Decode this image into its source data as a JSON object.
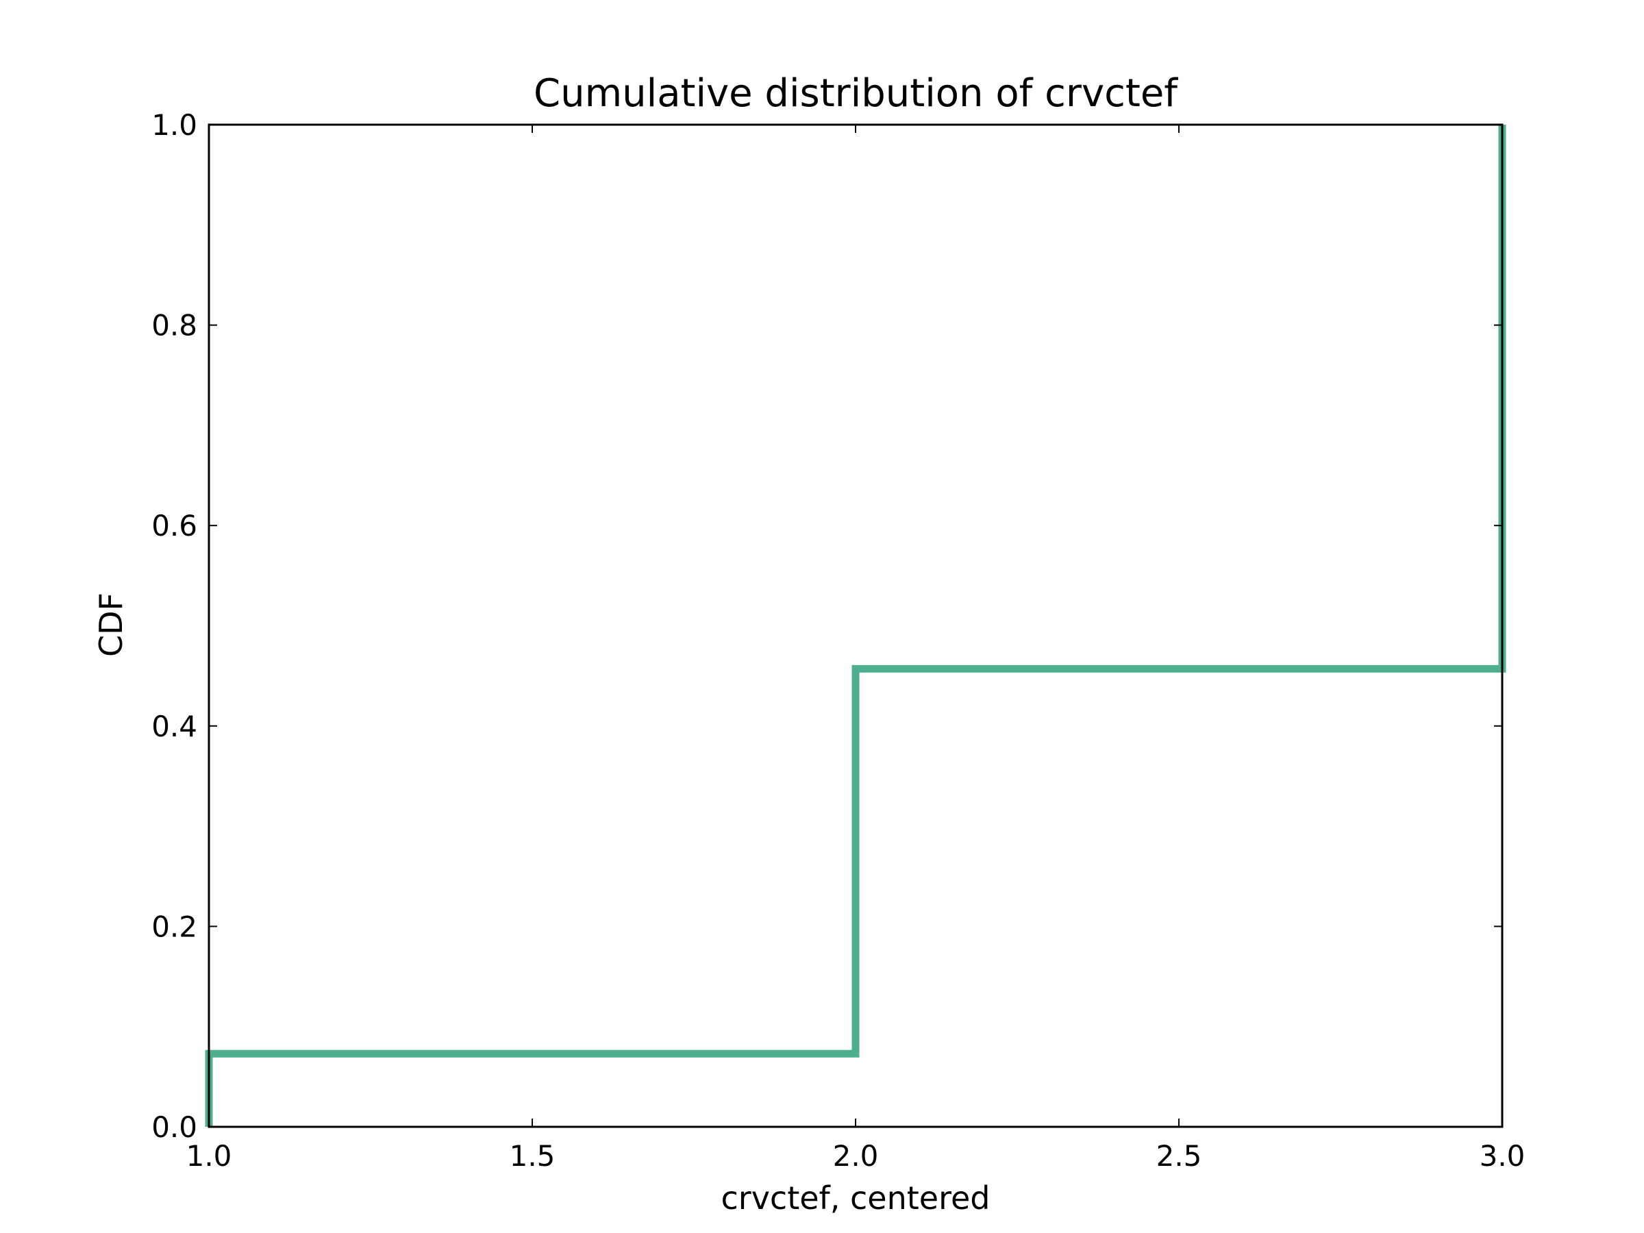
{
  "chart_data": {
    "type": "line",
    "title": "Cumulative distribution of crvctef",
    "xlabel": "crvctef, centered",
    "ylabel": "CDF",
    "xlim": [
      1.0,
      3.0
    ],
    "ylim": [
      0.0,
      1.0
    ],
    "grid": false,
    "step": true,
    "xticks": [
      "1.0",
      "1.5",
      "2.0",
      "2.5",
      "3.0"
    ],
    "yticks": [
      "0.0",
      "0.2",
      "0.4",
      "0.6",
      "0.8",
      "1.0"
    ],
    "series": [
      {
        "color": "#4daf8f",
        "points": [
          {
            "x": 1.0,
            "y": 0.0
          },
          {
            "x": 1.0,
            "y": 0.073
          },
          {
            "x": 2.0,
            "y": 0.073
          },
          {
            "x": 2.0,
            "y": 0.457
          },
          {
            "x": 3.0,
            "y": 0.457
          },
          {
            "x": 3.0,
            "y": 1.0
          }
        ]
      }
    ]
  }
}
